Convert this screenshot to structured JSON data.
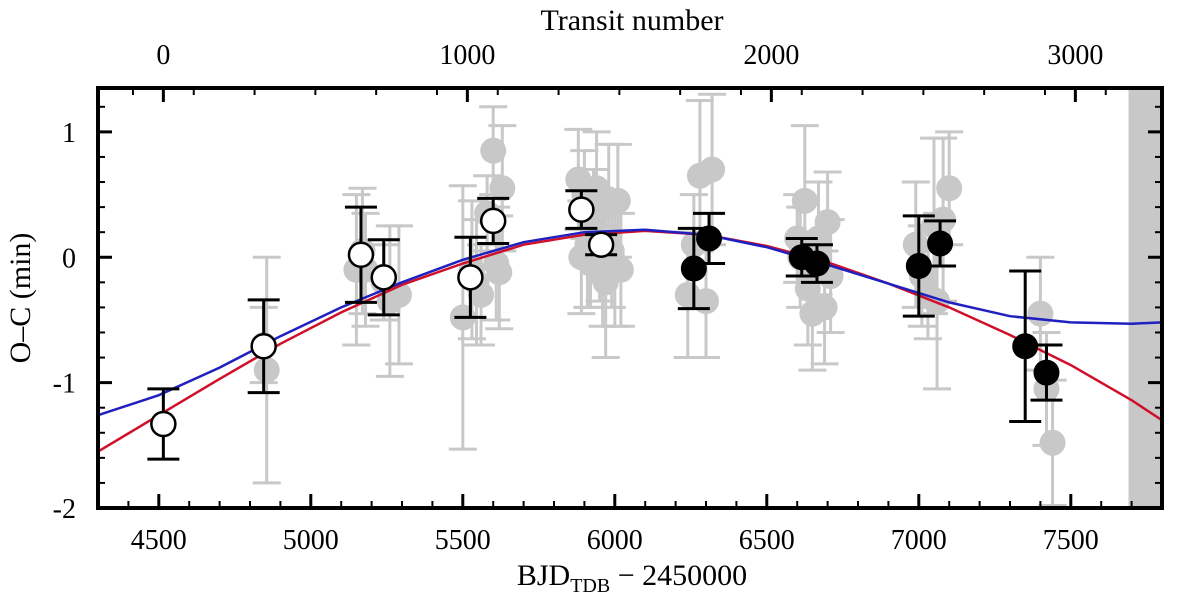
{
  "chart_data": {
    "type": "scatter",
    "title": "",
    "xlabel": {
      "main": "BJD",
      "sub": "TDB",
      "rest": " − 2450000"
    },
    "ylabel": "O–C (min)",
    "x2label": "Transit number",
    "xlim": [
      4300,
      7800
    ],
    "ylim": [
      -2,
      1.35
    ],
    "x_ticks": [
      4500,
      5000,
      5500,
      6000,
      6500,
      7000,
      7500
    ],
    "y_ticks": [
      -2,
      -1,
      0,
      1
    ],
    "x2_ticks": [
      0,
      1000,
      2000,
      3000
    ],
    "x2_to_x": {
      "x_at_0": 4515,
      "x_per_transit": 1.0
    },
    "grid": false,
    "shaded_region": {
      "x_from": 7690,
      "x_to": 7800,
      "color": "#c8c8c8"
    },
    "series": [
      {
        "style": "grey-filled",
        "color": "#c8c8c8",
        "points": [
          {
            "x": 4845,
            "y": -0.7,
            "err": 0.3
          },
          {
            "x": 4855,
            "y": -0.9,
            "err": 0.9
          },
          {
            "x": 5150,
            "y": -0.1,
            "err": 0.6
          },
          {
            "x": 5170,
            "y": 0.05,
            "err": 0.5
          },
          {
            "x": 5180,
            "y": -0.1,
            "err": 0.45
          },
          {
            "x": 5240,
            "y": -0.2,
            "err": 0.3
          },
          {
            "x": 5260,
            "y": -0.35,
            "err": 0.6
          },
          {
            "x": 5290,
            "y": -0.3,
            "err": 0.55
          },
          {
            "x": 5500,
            "y": -0.48,
            "err": 1.05
          },
          {
            "x": 5530,
            "y": -0.1,
            "err": 0.55
          },
          {
            "x": 5545,
            "y": -0.2,
            "err": 0.5
          },
          {
            "x": 5560,
            "y": -0.3,
            "err": 0.4
          },
          {
            "x": 5580,
            "y": 0.35,
            "err": 0.3
          },
          {
            "x": 5600,
            "y": 0.85,
            "err": 0.35
          },
          {
            "x": 5610,
            "y": -0.05,
            "err": 0.45
          },
          {
            "x": 5620,
            "y": -0.12,
            "err": 0.45
          },
          {
            "x": 5630,
            "y": 0.55,
            "err": 0.5
          },
          {
            "x": 5880,
            "y": 0.62,
            "err": 0.4
          },
          {
            "x": 5890,
            "y": 0.0,
            "err": 0.45
          },
          {
            "x": 5900,
            "y": 0.5,
            "err": 0.35
          },
          {
            "x": 5910,
            "y": 0.1,
            "err": 0.5
          },
          {
            "x": 5920,
            "y": -0.05,
            "err": 0.35
          },
          {
            "x": 5930,
            "y": 0.3,
            "err": 0.4
          },
          {
            "x": 5940,
            "y": 0.55,
            "err": 0.45
          },
          {
            "x": 5950,
            "y": 0.1,
            "err": 0.45
          },
          {
            "x": 5960,
            "y": -0.15,
            "err": 0.4
          },
          {
            "x": 5970,
            "y": -0.2,
            "err": 0.6
          },
          {
            "x": 5980,
            "y": 0.4,
            "err": 0.5
          },
          {
            "x": 5990,
            "y": 0.05,
            "err": 0.45
          },
          {
            "x": 6000,
            "y": -0.05,
            "err": 0.5
          },
          {
            "x": 6010,
            "y": 0.45,
            "err": 0.45
          },
          {
            "x": 6020,
            "y": -0.1,
            "err": 0.45
          },
          {
            "x": 6240,
            "y": -0.3,
            "err": 0.5
          },
          {
            "x": 6260,
            "y": 0.1,
            "err": 0.4
          },
          {
            "x": 6280,
            "y": 0.65,
            "err": 0.6
          },
          {
            "x": 6300,
            "y": -0.35,
            "err": 0.45
          },
          {
            "x": 6320,
            "y": 0.7,
            "err": 0.6
          },
          {
            "x": 6600,
            "y": 0.15,
            "err": 0.35
          },
          {
            "x": 6610,
            "y": 0.0,
            "err": 0.4
          },
          {
            "x": 6625,
            "y": 0.45,
            "err": 0.6
          },
          {
            "x": 6635,
            "y": -0.25,
            "err": 0.45
          },
          {
            "x": 6650,
            "y": -0.45,
            "err": 0.45
          },
          {
            "x": 6670,
            "y": 0.15,
            "err": 0.45
          },
          {
            "x": 6690,
            "y": -0.4,
            "err": 0.45
          },
          {
            "x": 6700,
            "y": 0.28,
            "err": 0.4
          },
          {
            "x": 6710,
            "y": -0.15,
            "err": 0.45
          },
          {
            "x": 6990,
            "y": 0.1,
            "err": 0.5
          },
          {
            "x": 7010,
            "y": -0.15,
            "err": 0.4
          },
          {
            "x": 7030,
            "y": -0.3,
            "err": 0.35
          },
          {
            "x": 7050,
            "y": 0.25,
            "err": 0.7
          },
          {
            "x": 7060,
            "y": -0.35,
            "err": 0.7
          },
          {
            "x": 7080,
            "y": 0.3,
            "err": 0.65
          },
          {
            "x": 7100,
            "y": 0.55,
            "err": 0.45
          },
          {
            "x": 7400,
            "y": -0.45,
            "err": 0.45
          },
          {
            "x": 7420,
            "y": -1.05,
            "err": 0.45
          },
          {
            "x": 7440,
            "y": -1.48,
            "err": 0.5
          }
        ]
      },
      {
        "style": "open-circle",
        "color": "#000000",
        "points": [
          {
            "x": 4515,
            "y": -1.33,
            "err": 0.28
          },
          {
            "x": 4845,
            "y": -0.71,
            "err": 0.37
          },
          {
            "x": 5165,
            "y": 0.02,
            "err": 0.38
          },
          {
            "x": 5240,
            "y": -0.16,
            "err": 0.3
          },
          {
            "x": 5525,
            "y": -0.16,
            "err": 0.32
          },
          {
            "x": 5600,
            "y": 0.29,
            "err": 0.18
          },
          {
            "x": 5890,
            "y": 0.38,
            "err": 0.15
          },
          {
            "x": 5955,
            "y": 0.1,
            "err": 0.08
          }
        ]
      },
      {
        "style": "filled-circle",
        "color": "#000000",
        "points": [
          {
            "x": 6260,
            "y": -0.09,
            "err": 0.32
          },
          {
            "x": 6310,
            "y": 0.15,
            "err": 0.2
          },
          {
            "x": 6615,
            "y": 0.0,
            "err": 0.15
          },
          {
            "x": 6665,
            "y": -0.05,
            "err": 0.15
          },
          {
            "x": 7000,
            "y": -0.07,
            "err": 0.4
          },
          {
            "x": 7070,
            "y": 0.11,
            "err": 0.18
          },
          {
            "x": 7350,
            "y": -0.71,
            "err": 0.6
          },
          {
            "x": 7420,
            "y": -0.92,
            "err": 0.22
          }
        ]
      }
    ],
    "models": [
      {
        "color": "#d0102a",
        "x": [
          4300,
          4500,
          4700,
          4900,
          5100,
          5300,
          5500,
          5700,
          5900,
          6100,
          6300,
          6500,
          6700,
          6900,
          7100,
          7300,
          7500,
          7700,
          7800
        ],
        "y": [
          -1.55,
          -1.26,
          -0.97,
          -0.69,
          -0.44,
          -0.22,
          -0.05,
          0.1,
          0.18,
          0.21,
          0.18,
          0.09,
          -0.04,
          -0.21,
          -0.4,
          -0.62,
          -0.86,
          -1.14,
          -1.3
        ]
      },
      {
        "color": "#2020c0",
        "x": [
          4300,
          4500,
          4700,
          4900,
          5100,
          5300,
          5500,
          5700,
          5900,
          6100,
          6300,
          6500,
          6700,
          6900,
          7100,
          7300,
          7500,
          7700,
          7800
        ],
        "y": [
          -1.26,
          -1.1,
          -0.88,
          -0.63,
          -0.4,
          -0.2,
          -0.02,
          0.12,
          0.2,
          0.22,
          0.18,
          0.08,
          -0.06,
          -0.21,
          -0.36,
          -0.47,
          -0.52,
          -0.53,
          -0.52
        ]
      }
    ]
  }
}
